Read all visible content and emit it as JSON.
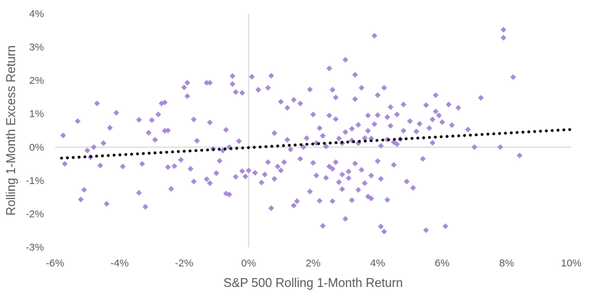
{
  "chart_data": {
    "type": "scatter",
    "title": "",
    "xlabel": "S&P 500 Rolling 1-Month Return",
    "ylabel": "Rolling 1-Month Excess Return",
    "xlim": [
      -0.06,
      0.1
    ],
    "ylim": [
      -0.03,
      0.04
    ],
    "x_ticks": [
      -0.06,
      -0.04,
      -0.02,
      0,
      0.02,
      0.04,
      0.06,
      0.08,
      0.1
    ],
    "x_tick_labels": [
      "-6%",
      "-4%",
      "-2%",
      "0%",
      "2%",
      "4%",
      "6%",
      "8%",
      "10%"
    ],
    "y_ticks": [
      -0.03,
      -0.02,
      -0.01,
      0,
      0.01,
      0.02,
      0.03,
      0.04
    ],
    "y_tick_labels": [
      "-3%",
      "-2%",
      "-1%",
      "0%",
      "1%",
      "2%",
      "3%",
      "4%"
    ],
    "grid": false,
    "legend": "none",
    "marker_color": "#a98ad8",
    "trendline_color": "#000000",
    "trendline": {
      "style": "dotted",
      "x": [
        -0.058,
        0.1
      ],
      "y": [
        -0.0033,
        0.0053
      ]
    },
    "points": [
      [
        -0.0575,
        0.0035
      ],
      [
        -0.057,
        -0.005
      ],
      [
        -0.053,
        0.0078
      ],
      [
        -0.052,
        -0.0157
      ],
      [
        -0.051,
        -0.0128
      ],
      [
        -0.05,
        -0.001
      ],
      [
        -0.049,
        -0.003
      ],
      [
        -0.048,
        0.0
      ],
      [
        -0.047,
        0.0131
      ],
      [
        -0.046,
        -0.0055
      ],
      [
        -0.045,
        0.0012
      ],
      [
        -0.044,
        -0.017
      ],
      [
        -0.043,
        0.0058
      ],
      [
        -0.041,
        0.0103
      ],
      [
        -0.039,
        -0.0058
      ],
      [
        -0.034,
        0.0082
      ],
      [
        -0.034,
        -0.0137
      ],
      [
        -0.033,
        -0.005
      ],
      [
        -0.032,
        -0.0179
      ],
      [
        -0.031,
        0.0043
      ],
      [
        -0.03,
        0.0081
      ],
      [
        -0.029,
        0.0022
      ],
      [
        -0.028,
        0.0098
      ],
      [
        -0.027,
        0.0131
      ],
      [
        -0.026,
        0.0049
      ],
      [
        -0.026,
        0.0134
      ],
      [
        -0.025,
        0.005
      ],
      [
        -0.025,
        -0.006
      ],
      [
        -0.024,
        -0.0125
      ],
      [
        -0.023,
        -0.0057
      ],
      [
        -0.021,
        -0.0038
      ],
      [
        -0.02,
        0.0179
      ],
      [
        -0.019,
        0.0193
      ],
      [
        -0.019,
        0.0153
      ],
      [
        -0.018,
        -0.0065
      ],
      [
        -0.017,
        0.0083
      ],
      [
        -0.017,
        -0.0103
      ],
      [
        -0.016,
        0.0019
      ],
      [
        -0.013,
        0.0193
      ],
      [
        -0.013,
        -0.0096
      ],
      [
        -0.012,
        0.0193
      ],
      [
        -0.012,
        0.0074
      ],
      [
        -0.012,
        -0.0108
      ],
      [
        -0.011,
        -0.0005
      ],
      [
        -0.01,
        -0.0078
      ],
      [
        -0.009,
        -0.0041
      ],
      [
        -0.008,
        -0.001
      ],
      [
        -0.007,
        0.0052
      ],
      [
        -0.007,
        -0.0139
      ],
      [
        -0.006,
        -0.0142
      ],
      [
        -0.006,
        0.0
      ],
      [
        -0.005,
        0.0189
      ],
      [
        -0.005,
        0.0213
      ],
      [
        -0.004,
        0.0165
      ],
      [
        -0.004,
        -0.0089
      ],
      [
        -0.003,
        0.0018
      ],
      [
        -0.002,
        -0.0072
      ],
      [
        -0.002,
        0.0163
      ],
      [
        -0.001,
        -0.0088
      ],
      [
        0.0,
        -0.007
      ],
      [
        0.001,
        0.0211
      ],
      [
        0.002,
        -0.0077
      ],
      [
        0.003,
        0.0172
      ],
      [
        0.004,
        -0.0106
      ],
      [
        0.005,
        -0.0082
      ],
      [
        0.006,
        -0.0045
      ],
      [
        0.006,
        0.0178
      ],
      [
        0.007,
        0.0214
      ],
      [
        0.007,
        -0.0183
      ],
      [
        0.008,
        -0.0095
      ],
      [
        0.008,
        0.0042
      ],
      [
        0.009,
        -0.0058
      ],
      [
        0.01,
        0.0136
      ],
      [
        0.01,
        -0.007
      ],
      [
        0.011,
        -0.0045
      ],
      [
        0.012,
        0.0022
      ],
      [
        0.012,
        0.0118
      ],
      [
        0.013,
        -0.0007
      ],
      [
        0.014,
        0.0142
      ],
      [
        0.014,
        -0.0175
      ],
      [
        0.015,
        -0.0162
      ],
      [
        0.016,
        0.0131
      ],
      [
        0.016,
        -0.0035
      ],
      [
        0.017,
        0.0
      ],
      [
        0.018,
        0.0027
      ],
      [
        0.019,
        -0.0133
      ],
      [
        0.019,
        0.0173
      ],
      [
        0.02,
        -0.0047
      ],
      [
        0.02,
        0.0098
      ],
      [
        0.021,
        -0.0085
      ],
      [
        0.021,
        0.0012
      ],
      [
        0.022,
        -0.0161
      ],
      [
        0.022,
        0.0057
      ],
      [
        0.023,
        0.0034
      ],
      [
        0.023,
        -0.0236
      ],
      [
        0.024,
        -0.0092
      ],
      [
        0.024,
        0.0002
      ],
      [
        0.025,
        0.0095
      ],
      [
        0.025,
        -0.0058
      ],
      [
        0.025,
        0.0236
      ],
      [
        0.026,
        -0.0162
      ],
      [
        0.026,
        0.0172
      ],
      [
        0.026,
        -0.0065
      ],
      [
        0.027,
        0.0084
      ],
      [
        0.027,
        -0.0045
      ],
      [
        0.027,
        0.0149
      ],
      [
        0.028,
        0.0026
      ],
      [
        0.028,
        -0.0105
      ],
      [
        0.029,
        -0.0082
      ],
      [
        0.029,
        0.0012
      ],
      [
        0.029,
        -0.0126
      ],
      [
        0.03,
        0.0045
      ],
      [
        0.03,
        -0.0215
      ],
      [
        0.03,
        0.0262
      ],
      [
        0.031,
        -0.0093
      ],
      [
        0.031,
        -0.0073
      ],
      [
        0.032,
        0.002
      ],
      [
        0.032,
        -0.0159
      ],
      [
        0.032,
        0.0055
      ],
      [
        0.033,
        0.0217
      ],
      [
        0.033,
        -0.0049
      ],
      [
        0.033,
        0.0144
      ],
      [
        0.034,
        -0.0128
      ],
      [
        0.034,
        0.0067
      ],
      [
        0.034,
        0.0012
      ],
      [
        0.035,
        -0.0068
      ],
      [
        0.035,
        0.0178
      ],
      [
        0.036,
        0.0027
      ],
      [
        0.036,
        -0.0108
      ],
      [
        0.037,
        0.0095
      ],
      [
        0.037,
        -0.0148
      ],
      [
        0.037,
        0.0049
      ],
      [
        0.038,
        -0.0085
      ],
      [
        0.038,
        0.0026
      ],
      [
        0.038,
        -0.0154
      ],
      [
        0.039,
        0.0334
      ],
      [
        0.039,
        0.0069
      ],
      [
        0.04,
        -0.0042
      ],
      [
        0.04,
        0.0096
      ],
      [
        0.04,
        0.0156
      ],
      [
        0.041,
        -0.0095
      ],
      [
        0.041,
        0.0004
      ],
      [
        0.041,
        -0.0238
      ],
      [
        0.042,
        0.0178
      ],
      [
        0.042,
        -0.0253
      ],
      [
        0.043,
        0.009
      ],
      [
        0.043,
        0.0023
      ],
      [
        0.043,
        -0.0158
      ],
      [
        0.044,
        0.012
      ],
      [
        0.044,
        0.0064
      ],
      [
        0.045,
        -0.0053
      ],
      [
        0.045,
        0.0015
      ],
      [
        0.046,
        0.0098
      ],
      [
        0.046,
        0.0009
      ],
      [
        0.047,
        0.0024
      ],
      [
        0.048,
        0.0128
      ],
      [
        0.048,
        0.0049
      ],
      [
        0.049,
        -0.0103
      ],
      [
        0.05,
        0.0078
      ],
      [
        0.051,
        -0.0122
      ],
      [
        0.052,
        0.0047
      ],
      [
        0.053,
        0.007
      ],
      [
        0.054,
        -0.0035
      ],
      [
        0.055,
        0.0126
      ],
      [
        0.055,
        -0.0249
      ],
      [
        0.056,
        0.0057
      ],
      [
        0.057,
        0.0013
      ],
      [
        0.057,
        0.0083
      ],
      [
        0.058,
        0.0156
      ],
      [
        0.058,
        0.0107
      ],
      [
        0.059,
        0.0095
      ],
      [
        0.06,
        0.0075
      ],
      [
        0.061,
        -0.0237
      ],
      [
        0.062,
        0.0128
      ],
      [
        0.063,
        0.0066
      ],
      [
        0.065,
        0.0118
      ],
      [
        0.068,
        0.0053
      ],
      [
        0.07,
        0.0
      ],
      [
        0.072,
        0.0148
      ],
      [
        0.078,
        0.0
      ],
      [
        0.079,
        0.0328
      ],
      [
        0.079,
        0.0352
      ],
      [
        0.082,
        0.021
      ],
      [
        0.084,
        -0.0025
      ]
    ]
  }
}
